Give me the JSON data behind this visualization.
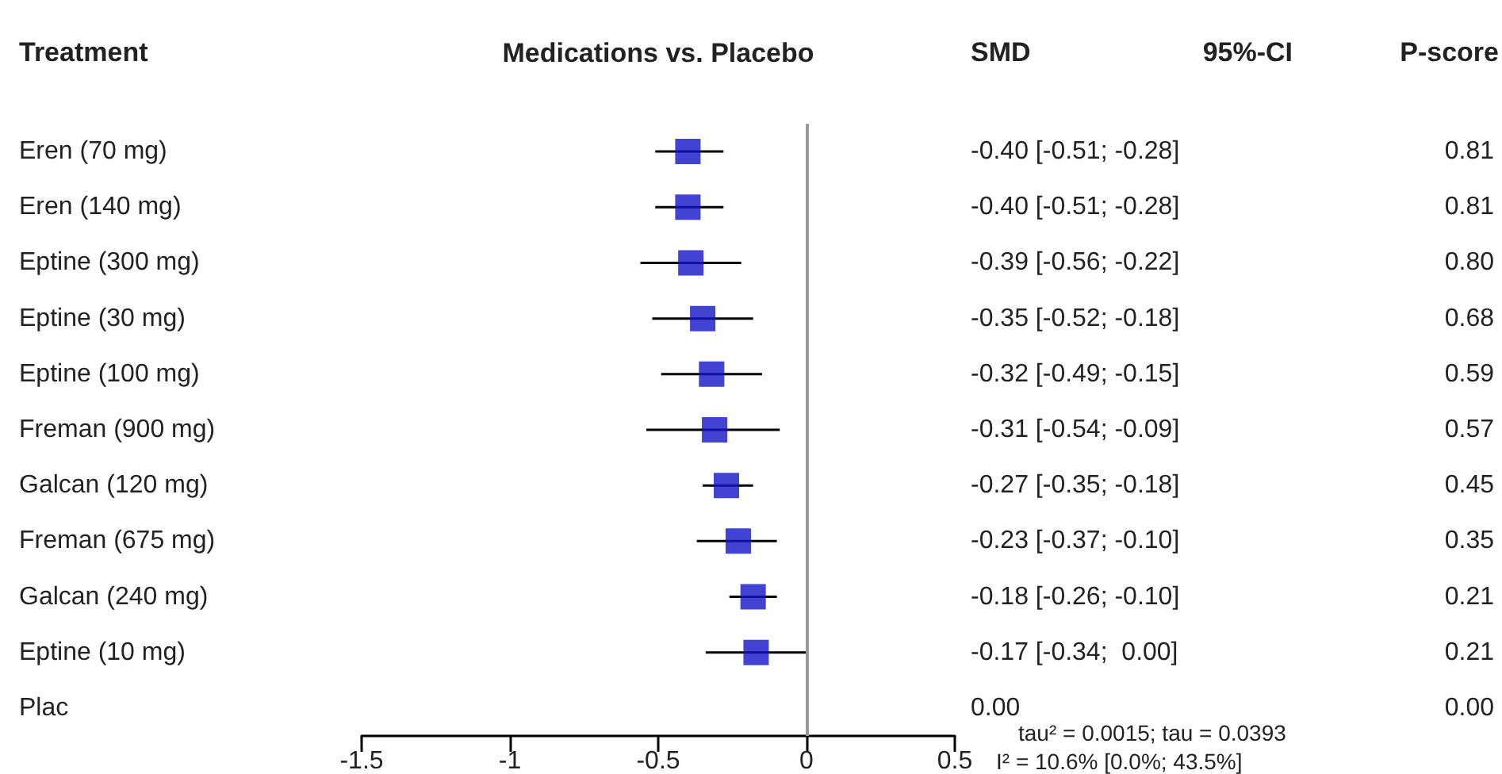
{
  "chart_data": {
    "type": "scatter",
    "orientation": "horizontal",
    "title": "Medications vs. Placebo",
    "ylabel": "Treatment",
    "categories": [
      "Eren (70 mg)",
      "Eren (140 mg)",
      "Eptine (300 mg)",
      "Eptine (30 mg)",
      "Eptine (100 mg)",
      "Freman (900 mg)",
      "Galcan (120 mg)",
      "Freman (675 mg)",
      "Galcan (240 mg)",
      "Eptine (10 mg)",
      "Plac"
    ],
    "series": [
      {
        "color": "#1414c8",
        "marker": "square",
        "values": [
          -0.4,
          -0.4,
          -0.39,
          -0.35,
          -0.32,
          -0.31,
          -0.27,
          -0.23,
          -0.18,
          -0.17,
          null
        ],
        "errors": [
          [
            -0.51,
            -0.28
          ],
          [
            -0.51,
            -0.28
          ],
          [
            -0.56,
            -0.22
          ],
          [
            -0.52,
            -0.18
          ],
          [
            -0.49,
            -0.15
          ],
          [
            -0.54,
            -0.09
          ],
          [
            -0.35,
            -0.18
          ],
          [
            -0.37,
            -0.1
          ],
          [
            -0.26,
            -0.1
          ],
          [
            -0.34,
            0.0
          ],
          null
        ],
        "value_labels": [
          "-0.40 [-0.51; -0.28]",
          "-0.40 [-0.51; -0.28]",
          "-0.39 [-0.56; -0.22]",
          "-0.35 [-0.52; -0.18]",
          "-0.32 [-0.49; -0.15]",
          "-0.31 [-0.54; -0.09]",
          "-0.27 [-0.35; -0.18]",
          "-0.23 [-0.37; -0.10]",
          "-0.18 [-0.26; -0.10]",
          "-0.17 [-0.34;  0.00]",
          "0.00"
        ]
      }
    ],
    "xlim": [
      -1.5,
      0.5
    ],
    "xticks": [
      -1.5,
      -1,
      -0.5,
      0,
      0.5
    ],
    "grid": false,
    "ref_lines": [
      {
        "axis": "x",
        "value": 0,
        "color": "#999999"
      }
    ],
    "annotations": [
      "SMD",
      "95%-CI",
      "P-score",
      "0.81",
      "0.81",
      "0.80",
      "0.68",
      "0.59",
      "0.57",
      "0.45",
      "0.35",
      "0.21",
      "0.21",
      "0.00",
      "tau² = 0.0015; tau = 0.0393",
      "I² = 10.6% [0.0%; 43.5%]"
    ]
  }
}
